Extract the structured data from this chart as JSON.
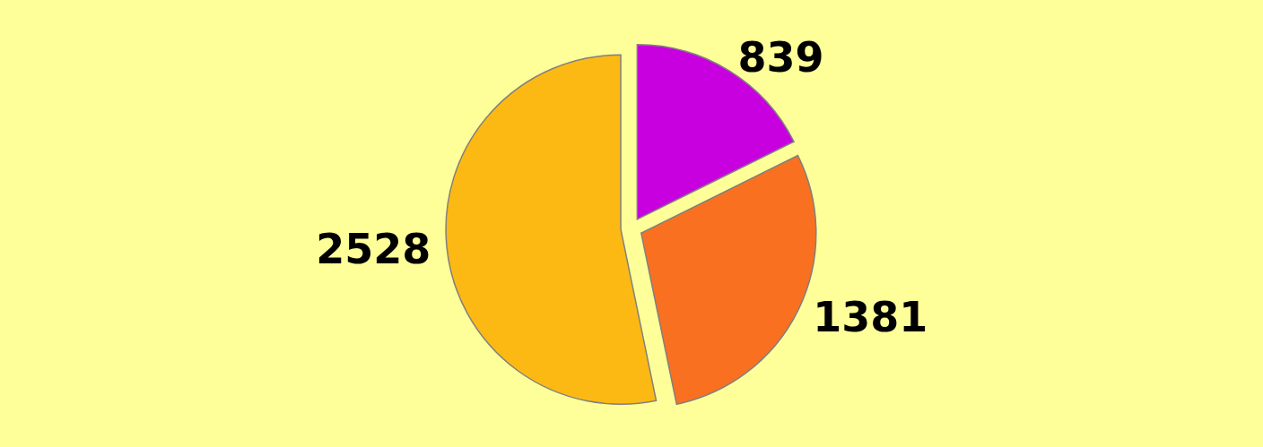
{
  "chart_data": {
    "type": "pie",
    "categories": [
      null,
      null,
      null
    ],
    "values": [
      839,
      1381,
      2528
    ],
    "colors": [
      "#c800e0",
      "#f97020",
      "#fdb913"
    ],
    "data_labels": true
  }
}
